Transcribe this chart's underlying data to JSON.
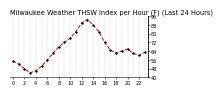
{
  "title": "Milwaukee Weather THSW Index per Hour (F) (Last 24 Hours)",
  "hours": [
    0,
    1,
    2,
    3,
    4,
    5,
    6,
    7,
    8,
    9,
    10,
    11,
    12,
    13,
    14,
    15,
    16,
    17,
    18,
    19,
    20,
    21,
    22,
    23
  ],
  "values": [
    55,
    52,
    48,
    44,
    46,
    50,
    56,
    62,
    68,
    72,
    76,
    82,
    90,
    93,
    88,
    82,
    72,
    65,
    62,
    64,
    66,
    62,
    60,
    63
  ],
  "ylim": [
    40,
    96
  ],
  "ytick_values": [
    96,
    88,
    80,
    72,
    64,
    56,
    48,
    40
  ],
  "ytick_labels": [
    "96",
    "88",
    "80",
    "72",
    "64",
    "56",
    "48",
    "40"
  ],
  "background_color": "#ffffff",
  "line_color": "#cc0000",
  "marker_color": "#000000",
  "grid_color": "#888888",
  "title_fontsize": 4.8,
  "tick_fontsize": 3.5
}
